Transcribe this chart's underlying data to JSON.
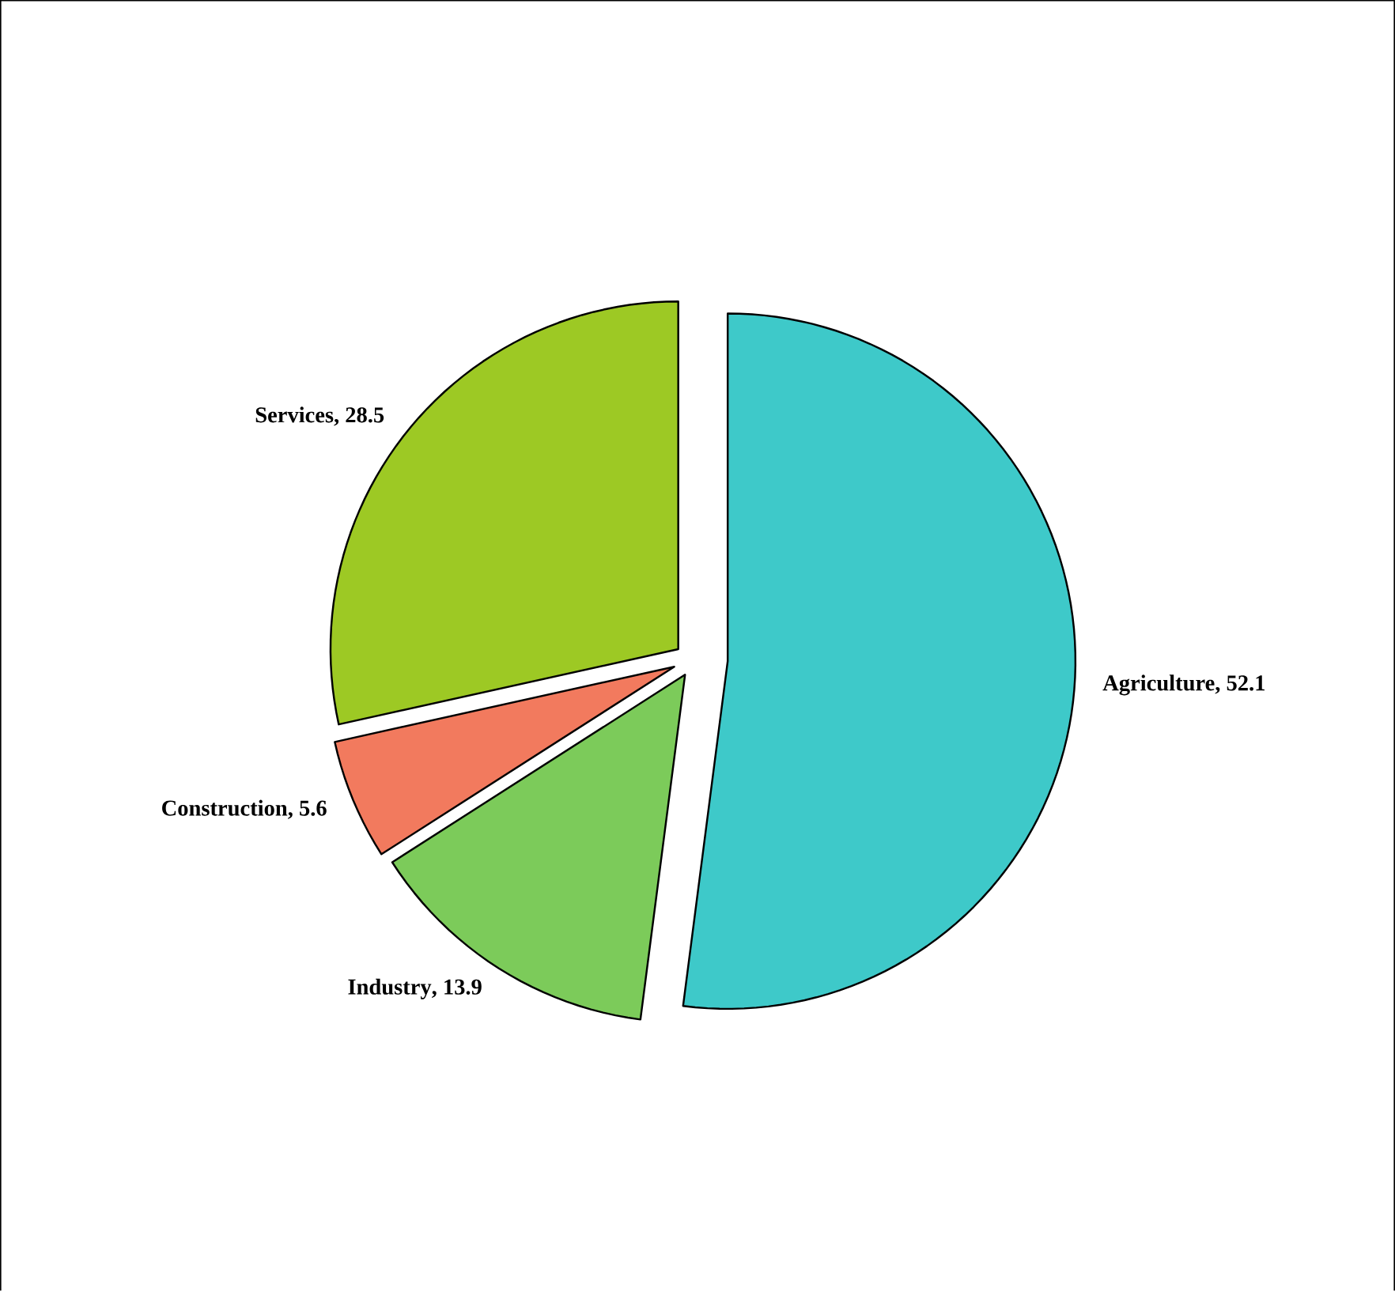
{
  "chart_data": {
    "type": "pie",
    "categories": [
      "Agriculture",
      "Industry",
      "Construction",
      "Services"
    ],
    "values": [
      52.1,
      13.9,
      5.6,
      28.5
    ],
    "colors": [
      "#3ec9c9",
      "#7ccb5a",
      "#f27a5e",
      "#9dc924"
    ],
    "data_labels": true,
    "value_labels": [
      ", 52.1",
      ", 13.9",
      ", 5.6",
      ", 28.5"
    ]
  }
}
